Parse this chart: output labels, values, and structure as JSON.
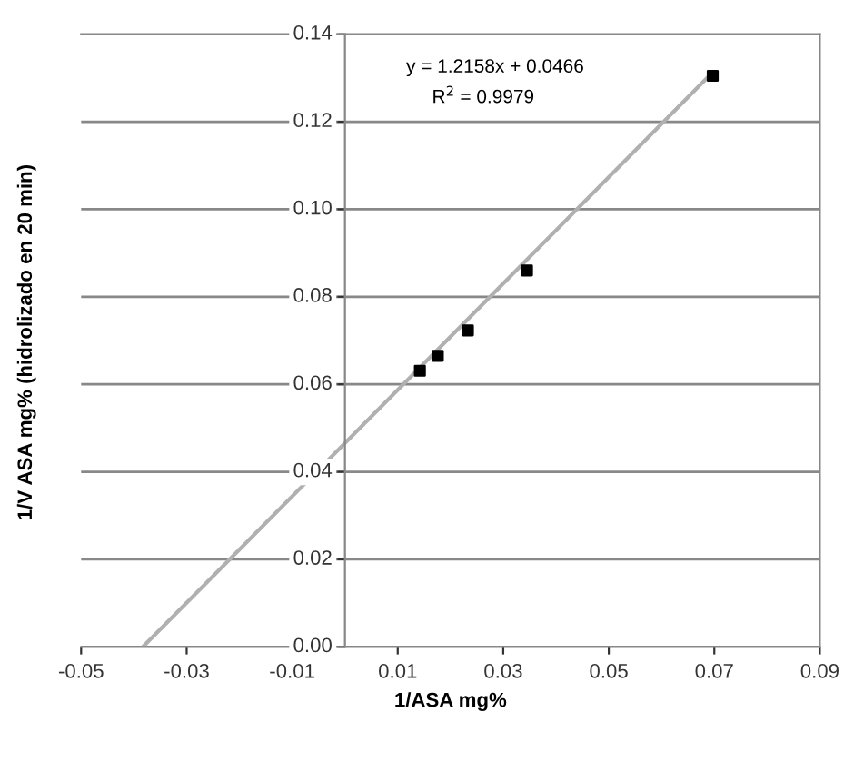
{
  "chart_data": {
    "type": "scatter",
    "xlabel": "1/ASA mg%",
    "ylabel": "1/V ASA mg% (hidrolizado en 20 min)",
    "series": [
      {
        "type": "scatter",
        "color": "#000000",
        "marker": "square",
        "x": [
          0.0142,
          0.0176,
          0.0233,
          0.0345,
          0.0697
        ],
        "values": [
          0.0631,
          0.0665,
          0.0723,
          0.086,
          0.1305
        ]
      },
      {
        "type": "line",
        "color": "#b0b0b0",
        "marker": "none",
        "x": [
          -0.0383,
          0.0697
        ],
        "values": [
          0.0,
          0.1313
        ]
      }
    ],
    "xlim": [
      -0.05,
      0.09
    ],
    "ylim": [
      0,
      0.14
    ],
    "xticks": [
      {
        "value": -0.05,
        "label": "-0.05"
      },
      {
        "value": -0.03,
        "label": "-0.03"
      },
      {
        "value": -0.01,
        "label": "-0.01"
      },
      {
        "value": 0.01,
        "label": "0.01"
      },
      {
        "value": 0.03,
        "label": "0.03"
      },
      {
        "value": 0.05,
        "label": "0.05"
      },
      {
        "value": 0.07,
        "label": "0.07"
      },
      {
        "value": 0.09,
        "label": "0.09"
      }
    ],
    "yticks": [
      {
        "value": 0,
        "label": "0.00"
      },
      {
        "value": 0.02,
        "label": "0.02"
      },
      {
        "value": 0.04,
        "label": "0.04"
      },
      {
        "value": 0.06,
        "label": "0.06"
      },
      {
        "value": 0.08,
        "label": "0.08"
      },
      {
        "value": 0.1,
        "label": "0.10"
      },
      {
        "value": 0.12,
        "label": "0.12"
      },
      {
        "value": 0.14,
        "label": "0.14"
      }
    ],
    "grid": "y",
    "legend": false,
    "annotations": [
      "y = 1.2158x + 0.0466",
      "R$^{2}$ = 0.9979"
    ]
  }
}
